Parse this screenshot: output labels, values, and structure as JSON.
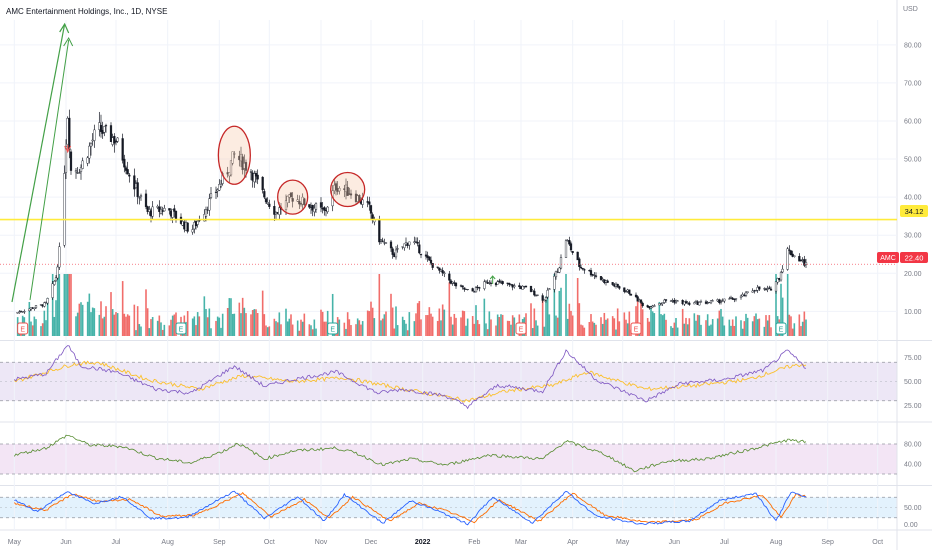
{
  "header": {
    "symbol_title": "AMC Entertainment Holdings, Inc., 1D, NYSE",
    "currency": "USD"
  },
  "colors": {
    "up": "#26a69a",
    "down": "#ef5350",
    "candle": "#131722",
    "price_tag": "#f23645",
    "level_line": "#ffeb3b",
    "arrow": "#43a047",
    "circle": "#c62828",
    "rsi_line": "#7e57c2",
    "rsi_ma": "#fbc02d",
    "rsi_band": "#ede7f6",
    "osc2_line": "#558b2f",
    "osc2_band": "#f3e5f5",
    "stoch_k": "#2962ff",
    "stoch_d": "#ff6d00",
    "stoch_band": "#e3f2fd"
  },
  "price_tags": {
    "level": "34.12",
    "symbol": "AMC",
    "last": "22.40"
  },
  "earnings_markers": [
    {
      "label": "E",
      "kind": "red"
    },
    {
      "label": "E",
      "kind": "green"
    },
    {
      "label": "E",
      "kind": "green"
    },
    {
      "label": "E",
      "kind": "red"
    },
    {
      "label": "E",
      "kind": "red"
    },
    {
      "label": "E",
      "kind": "green"
    }
  ],
  "chart_data": [
    {
      "type": "candlestick",
      "pane": "price",
      "x_axis_labels": [
        "May",
        "Jun",
        "Jul",
        "Aug",
        "Sep",
        "Oct",
        "Nov",
        "Dec",
        "2022",
        "Feb",
        "Mar",
        "Apr",
        "May",
        "Jun",
        "Jul",
        "Aug",
        "Sep",
        "Oct"
      ],
      "y_ticks": [
        10,
        20,
        30,
        40,
        50,
        60,
        70,
        80
      ],
      "ylim": [
        3,
        86
      ],
      "horizontal_level": 34.12,
      "last_price": 22.4,
      "price_path": [
        {
          "x": "2021-05-01",
          "y": 9.5
        },
        {
          "x": "2021-05-20",
          "y": 12.0
        },
        {
          "x": "2021-05-26",
          "y": 19.0
        },
        {
          "x": "2021-05-28",
          "y": 26.0
        },
        {
          "x": "2021-06-02",
          "y": 62.0
        },
        {
          "x": "2021-06-04",
          "y": 47.0
        },
        {
          "x": "2021-06-10",
          "y": 48.0
        },
        {
          "x": "2021-06-20",
          "y": 58.0
        },
        {
          "x": "2021-07-01",
          "y": 55.0
        },
        {
          "x": "2021-07-12",
          "y": 43.0
        },
        {
          "x": "2021-07-20",
          "y": 36.0
        },
        {
          "x": "2021-08-01",
          "y": 37.0
        },
        {
          "x": "2021-08-15",
          "y": 31.0
        },
        {
          "x": "2021-08-25",
          "y": 38.0
        },
        {
          "x": "2021-09-05",
          "y": 46.0
        },
        {
          "x": "2021-09-10",
          "y": 51.0
        },
        {
          "x": "2021-09-20",
          "y": 47.0
        },
        {
          "x": "2021-09-27",
          "y": 41.0
        },
        {
          "x": "2021-10-05",
          "y": 36.0
        },
        {
          "x": "2021-10-15",
          "y": 40.0
        },
        {
          "x": "2021-10-25",
          "y": 38.0
        },
        {
          "x": "2021-11-03",
          "y": 36.0
        },
        {
          "x": "2021-11-10",
          "y": 43.0
        },
        {
          "x": "2021-11-20",
          "y": 41.0
        },
        {
          "x": "2021-11-30",
          "y": 37.0
        },
        {
          "x": "2021-12-06",
          "y": 29.0
        },
        {
          "x": "2021-12-15",
          "y": 25.0
        },
        {
          "x": "2021-12-25",
          "y": 29.0
        },
        {
          "x": "2022-01-05",
          "y": 23.0
        },
        {
          "x": "2022-01-20",
          "y": 17.0
        },
        {
          "x": "2022-01-30",
          "y": 15.0
        },
        {
          "x": "2022-02-10",
          "y": 18.0
        },
        {
          "x": "2022-02-20",
          "y": 17.0
        },
        {
          "x": "2022-03-05",
          "y": 16.0
        },
        {
          "x": "2022-03-15",
          "y": 13.0
        },
        {
          "x": "2022-03-24",
          "y": 22.0
        },
        {
          "x": "2022-03-28",
          "y": 29.0
        },
        {
          "x": "2022-04-05",
          "y": 22.0
        },
        {
          "x": "2022-04-20",
          "y": 18.0
        },
        {
          "x": "2022-05-05",
          "y": 15.0
        },
        {
          "x": "2022-05-15",
          "y": 11.0
        },
        {
          "x": "2022-05-28",
          "y": 13.0
        },
        {
          "x": "2022-06-10",
          "y": 12.0
        },
        {
          "x": "2022-06-25",
          "y": 12.5
        },
        {
          "x": "2022-07-10",
          "y": 13.5
        },
        {
          "x": "2022-07-20",
          "y": 16.0
        },
        {
          "x": "2022-07-28",
          "y": 15.5
        },
        {
          "x": "2022-08-03",
          "y": 19.0
        },
        {
          "x": "2022-08-08",
          "y": 26.0
        },
        {
          "x": "2022-08-14",
          "y": 24.0
        },
        {
          "x": "2022-08-19",
          "y": 22.4
        }
      ]
    },
    {
      "type": "line",
      "pane": "rsi",
      "y_ticks": [
        25,
        50,
        75
      ],
      "ylim": [
        10,
        90
      ],
      "band": [
        30,
        70
      ],
      "series": [
        {
          "name": "",
          "path": [
            {
              "x": "2021-05-01",
              "y": 52
            },
            {
              "x": "2021-05-20",
              "y": 58
            },
            {
              "x": "2021-06-02",
              "y": 88
            },
            {
              "x": "2021-06-10",
              "y": 66
            },
            {
              "x": "2021-07-01",
              "y": 60
            },
            {
              "x": "2021-07-25",
              "y": 42
            },
            {
              "x": "2021-08-15",
              "y": 38
            },
            {
              "x": "2021-09-10",
              "y": 66
            },
            {
              "x": "2021-09-28",
              "y": 45
            },
            {
              "x": "2021-10-15",
              "y": 52
            },
            {
              "x": "2021-11-10",
              "y": 60
            },
            {
              "x": "2021-12-05",
              "y": 38
            },
            {
              "x": "2021-12-20",
              "y": 42
            },
            {
              "x": "2022-01-15",
              "y": 35
            },
            {
              "x": "2022-01-28",
              "y": 24
            },
            {
              "x": "2022-02-15",
              "y": 46
            },
            {
              "x": "2022-03-14",
              "y": 40
            },
            {
              "x": "2022-03-28",
              "y": 82
            },
            {
              "x": "2022-04-15",
              "y": 52
            },
            {
              "x": "2022-05-15",
              "y": 30
            },
            {
              "x": "2022-06-05",
              "y": 48
            },
            {
              "x": "2022-07-01",
              "y": 52
            },
            {
              "x": "2022-07-25",
              "y": 62
            },
            {
              "x": "2022-08-08",
              "y": 82
            },
            {
              "x": "2022-08-19",
              "y": 64
            }
          ]
        },
        {
          "name": "",
          "path": [
            {
              "x": "2021-05-01",
              "y": 50
            },
            {
              "x": "2021-06-05",
              "y": 68
            },
            {
              "x": "2021-06-20",
              "y": 70
            },
            {
              "x": "2021-07-20",
              "y": 52
            },
            {
              "x": "2021-08-20",
              "y": 42
            },
            {
              "x": "2021-09-15",
              "y": 56
            },
            {
              "x": "2021-10-15",
              "y": 50
            },
            {
              "x": "2021-11-15",
              "y": 54
            },
            {
              "x": "2021-12-15",
              "y": 44
            },
            {
              "x": "2022-01-28",
              "y": 30
            },
            {
              "x": "2022-02-20",
              "y": 40
            },
            {
              "x": "2022-03-20",
              "y": 46
            },
            {
              "x": "2022-04-10",
              "y": 60
            },
            {
              "x": "2022-05-15",
              "y": 42
            },
            {
              "x": "2022-06-15",
              "y": 46
            },
            {
              "x": "2022-07-15",
              "y": 52
            },
            {
              "x": "2022-08-10",
              "y": 66
            },
            {
              "x": "2022-08-19",
              "y": 68
            }
          ]
        }
      ]
    },
    {
      "type": "line",
      "pane": "oscillator",
      "y_ticks": [
        40,
        80
      ],
      "ylim": [
        0,
        120
      ],
      "band": [
        20,
        80
      ],
      "series": [
        {
          "name": "",
          "path": [
            {
              "x": "2021-05-01",
              "y": 58
            },
            {
              "x": "2021-05-20",
              "y": 72
            },
            {
              "x": "2021-06-02",
              "y": 98
            },
            {
              "x": "2021-06-15",
              "y": 78
            },
            {
              "x": "2021-07-05",
              "y": 75
            },
            {
              "x": "2021-07-25",
              "y": 52
            },
            {
              "x": "2021-08-15",
              "y": 42
            },
            {
              "x": "2021-09-05",
              "y": 68
            },
            {
              "x": "2021-09-12",
              "y": 82
            },
            {
              "x": "2021-09-28",
              "y": 50
            },
            {
              "x": "2021-10-15",
              "y": 66
            },
            {
              "x": "2021-11-10",
              "y": 72
            },
            {
              "x": "2021-11-22",
              "y": 62
            },
            {
              "x": "2021-12-08",
              "y": 38
            },
            {
              "x": "2021-12-25",
              "y": 50
            },
            {
              "x": "2022-01-15",
              "y": 38
            },
            {
              "x": "2022-02-10",
              "y": 58
            },
            {
              "x": "2022-03-14",
              "y": 50
            },
            {
              "x": "2022-03-28",
              "y": 86
            },
            {
              "x": "2022-04-20",
              "y": 60
            },
            {
              "x": "2022-05-08",
              "y": 26
            },
            {
              "x": "2022-05-28",
              "y": 46
            },
            {
              "x": "2022-06-20",
              "y": 50
            },
            {
              "x": "2022-07-15",
              "y": 68
            },
            {
              "x": "2022-08-08",
              "y": 88
            },
            {
              "x": "2022-08-19",
              "y": 84
            }
          ]
        }
      ]
    },
    {
      "type": "line",
      "pane": "stochastic",
      "y_ticks": [
        0,
        50
      ],
      "ylim": [
        -10,
        110
      ],
      "band": [
        20,
        80
      ],
      "series": [
        {
          "name": "",
          "path": [
            {
              "x": "2021-05-01",
              "y": 72
            },
            {
              "x": "2021-05-15",
              "y": 38
            },
            {
              "x": "2021-06-01",
              "y": 96
            },
            {
              "x": "2021-06-18",
              "y": 62
            },
            {
              "x": "2021-07-05",
              "y": 82
            },
            {
              "x": "2021-07-22",
              "y": 18
            },
            {
              "x": "2021-08-12",
              "y": 20
            },
            {
              "x": "2021-09-10",
              "y": 98
            },
            {
              "x": "2021-09-28",
              "y": 18
            },
            {
              "x": "2021-10-18",
              "y": 82
            },
            {
              "x": "2021-11-03",
              "y": 10
            },
            {
              "x": "2021-11-15",
              "y": 88
            },
            {
              "x": "2021-12-08",
              "y": 4
            },
            {
              "x": "2021-12-25",
              "y": 70
            },
            {
              "x": "2022-01-10",
              "y": 40
            },
            {
              "x": "2022-01-28",
              "y": 2
            },
            {
              "x": "2022-02-12",
              "y": 80
            },
            {
              "x": "2022-03-08",
              "y": 5
            },
            {
              "x": "2022-03-28",
              "y": 98
            },
            {
              "x": "2022-04-15",
              "y": 25
            },
            {
              "x": "2022-05-12",
              "y": 2
            },
            {
              "x": "2022-06-10",
              "y": 10
            },
            {
              "x": "2022-06-28",
              "y": 70
            },
            {
              "x": "2022-07-20",
              "y": 92
            },
            {
              "x": "2022-08-01",
              "y": 10
            },
            {
              "x": "2022-08-10",
              "y": 96
            },
            {
              "x": "2022-08-19",
              "y": 78
            }
          ]
        },
        {
          "name": "",
          "path": [
            {
              "x": "2021-05-01",
              "y": 62
            },
            {
              "x": "2021-05-20",
              "y": 42
            },
            {
              "x": "2021-06-05",
              "y": 90
            },
            {
              "x": "2021-06-22",
              "y": 66
            },
            {
              "x": "2021-07-10",
              "y": 74
            },
            {
              "x": "2021-07-28",
              "y": 24
            },
            {
              "x": "2021-08-18",
              "y": 28
            },
            {
              "x": "2021-09-15",
              "y": 92
            },
            {
              "x": "2021-10-02",
              "y": 24
            },
            {
              "x": "2021-10-22",
              "y": 74
            },
            {
              "x": "2021-11-06",
              "y": 18
            },
            {
              "x": "2021-11-20",
              "y": 82
            },
            {
              "x": "2021-12-12",
              "y": 10
            },
            {
              "x": "2021-12-30",
              "y": 62
            },
            {
              "x": "2022-01-14",
              "y": 42
            },
            {
              "x": "2022-02-01",
              "y": 8
            },
            {
              "x": "2022-02-16",
              "y": 72
            },
            {
              "x": "2022-03-12",
              "y": 10
            },
            {
              "x": "2022-04-01",
              "y": 92
            },
            {
              "x": "2022-04-20",
              "y": 28
            },
            {
              "x": "2022-05-16",
              "y": 6
            },
            {
              "x": "2022-06-14",
              "y": 14
            },
            {
              "x": "2022-07-02",
              "y": 64
            },
            {
              "x": "2022-07-24",
              "y": 86
            },
            {
              "x": "2022-08-04",
              "y": 20
            },
            {
              "x": "2022-08-13",
              "y": 88
            },
            {
              "x": "2022-08-19",
              "y": 82
            }
          ]
        }
      ]
    }
  ]
}
